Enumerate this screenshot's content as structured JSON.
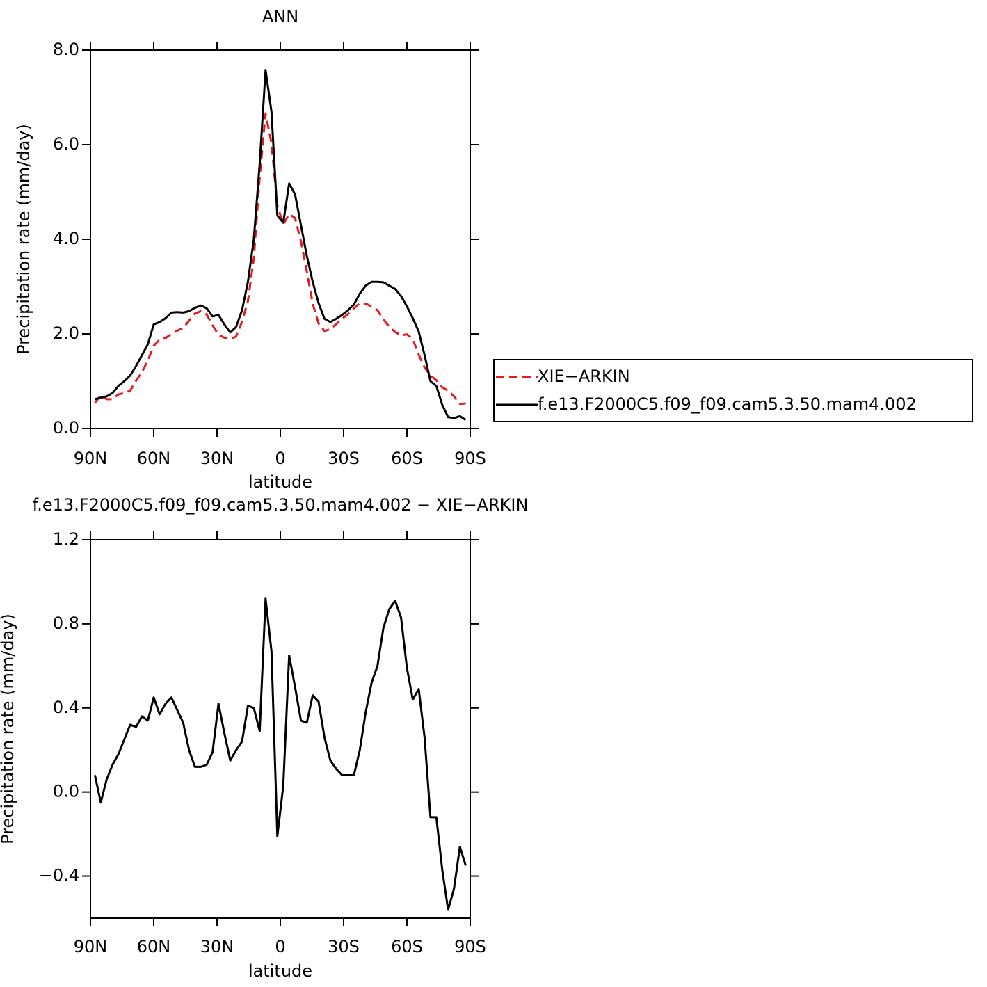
{
  "chart_data": [
    {
      "type": "line",
      "title": "ANN",
      "xlabel": "latitude",
      "ylabel": "Precipitation rate (mm/day)",
      "x": [
        87.86,
        85.1,
        82.31,
        79.53,
        76.74,
        73.95,
        71.16,
        68.37,
        65.58,
        62.79,
        60.0,
        57.21,
        54.42,
        51.63,
        48.84,
        46.05,
        43.26,
        40.47,
        37.67,
        34.88,
        32.09,
        29.3,
        26.51,
        23.72,
        20.93,
        18.14,
        15.35,
        12.56,
        9.77,
        6.98,
        4.19,
        1.4,
        -1.4,
        -4.19,
        -6.98,
        -9.77,
        -12.56,
        -15.35,
        -18.14,
        -20.93,
        -23.72,
        -26.51,
        -29.3,
        -32.09,
        -34.88,
        -37.67,
        -40.47,
        -43.26,
        -46.05,
        -48.84,
        -51.63,
        -54.42,
        -57.21,
        -60.0,
        -62.79,
        -65.58,
        -68.37,
        -71.16,
        -73.95,
        -76.74,
        -79.53,
        -82.31,
        -85.1,
        -87.86
      ],
      "xlim": [
        90,
        -90
      ],
      "xticks": [
        {
          "value": 90,
          "label": "90N"
        },
        {
          "value": 60,
          "label": "60N"
        },
        {
          "value": 30,
          "label": "30N"
        },
        0,
        {
          "value": -30,
          "label": "30S"
        },
        {
          "value": -60,
          "label": "60S"
        },
        {
          "value": -90,
          "label": "90S"
        }
      ],
      "ylim": [
        0,
        8
      ],
      "yticks": [
        {
          "value": 0,
          "label": "0.0"
        },
        {
          "value": 2,
          "label": "2.0"
        },
        {
          "value": 4,
          "label": "4.0"
        },
        {
          "value": 6,
          "label": "6.0"
        },
        {
          "value": 8,
          "label": "8.0"
        }
      ],
      "legend": "right",
      "series": [
        {
          "name": "XIE−ARKIN",
          "color": "#e41a1c",
          "linestyle": "dashed",
          "values": [
            0.54,
            0.7,
            0.62,
            0.62,
            0.72,
            0.75,
            0.8,
            1.01,
            1.19,
            1.44,
            1.75,
            1.88,
            1.91,
            2.0,
            2.07,
            2.12,
            2.28,
            2.43,
            2.48,
            2.41,
            2.18,
            1.98,
            1.92,
            1.88,
            1.95,
            2.26,
            2.69,
            3.6,
            5.31,
            6.66,
            6.03,
            4.71,
            4.32,
            4.53,
            4.45,
            3.96,
            3.32,
            2.64,
            2.22,
            2.06,
            2.1,
            2.21,
            2.32,
            2.42,
            2.54,
            2.65,
            2.64,
            2.58,
            2.5,
            2.31,
            2.15,
            2.04,
            1.97,
            1.99,
            1.89,
            1.56,
            1.29,
            1.12,
            1.02,
            0.87,
            0.8,
            0.68,
            0.52,
            0.53
          ]
        },
        {
          "name": "f.e13.F2000C5.f09_f09.cam5.3.50.mam4.002",
          "color": "#000000",
          "linestyle": "solid",
          "values": [
            0.62,
            0.65,
            0.68,
            0.75,
            0.9,
            1.0,
            1.12,
            1.32,
            1.55,
            1.78,
            2.2,
            2.25,
            2.33,
            2.45,
            2.46,
            2.45,
            2.48,
            2.55,
            2.6,
            2.54,
            2.37,
            2.4,
            2.2,
            2.03,
            2.15,
            2.5,
            3.1,
            4.0,
            5.6,
            7.58,
            6.7,
            4.5,
            4.35,
            5.18,
            4.95,
            4.3,
            3.65,
            3.1,
            2.65,
            2.32,
            2.25,
            2.32,
            2.4,
            2.5,
            2.62,
            2.85,
            3.02,
            3.1,
            3.1,
            3.09,
            3.02,
            2.95,
            2.8,
            2.58,
            2.33,
            2.05,
            1.55,
            1.0,
            0.9,
            0.5,
            0.24,
            0.22,
            0.26,
            0.18
          ]
        }
      ]
    },
    {
      "type": "line",
      "title": "f.e13.F2000C5.f09_f09.cam5.3.50.mam4.002 − XIE−ARKIN",
      "xlabel": "latitude",
      "ylabel": "Precipitation rate (mm/day)",
      "x": [
        87.86,
        85.1,
        82.31,
        79.53,
        76.74,
        73.95,
        71.16,
        68.37,
        65.58,
        62.79,
        60.0,
        57.21,
        54.42,
        51.63,
        48.84,
        46.05,
        43.26,
        40.47,
        37.67,
        34.88,
        32.09,
        29.3,
        26.51,
        23.72,
        20.93,
        18.14,
        15.35,
        12.56,
        9.77,
        6.98,
        4.19,
        1.4,
        -1.4,
        -4.19,
        -6.98,
        -9.77,
        -12.56,
        -15.35,
        -18.14,
        -20.93,
        -23.72,
        -26.51,
        -29.3,
        -32.09,
        -34.88,
        -37.67,
        -40.47,
        -43.26,
        -46.05,
        -48.84,
        -51.63,
        -54.42,
        -57.21,
        -60.0,
        -62.79,
        -65.58,
        -68.37,
        -71.16,
        -73.95,
        -76.74,
        -79.53,
        -82.31,
        -85.1,
        -87.86
      ],
      "xlim": [
        90,
        -90
      ],
      "xticks": [
        {
          "value": 90,
          "label": "90N"
        },
        {
          "value": 60,
          "label": "60N"
        },
        {
          "value": 30,
          "label": "30N"
        },
        0,
        {
          "value": -30,
          "label": "30S"
        },
        {
          "value": -60,
          "label": "60S"
        },
        {
          "value": -90,
          "label": "90S"
        }
      ],
      "ylim": [
        -0.6,
        1.2
      ],
      "yticks": [
        {
          "value": -0.4,
          "label": "−0.4"
        },
        {
          "value": 0,
          "label": "0.0"
        },
        0.4,
        0.8,
        1.2
      ],
      "color": "#000000",
      "linestyle": "solid",
      "values": [
        0.08,
        -0.05,
        0.06,
        0.13,
        0.18,
        0.25,
        0.32,
        0.31,
        0.36,
        0.34,
        0.45,
        0.37,
        0.42,
        0.45,
        0.39,
        0.33,
        0.2,
        0.12,
        0.12,
        0.13,
        0.19,
        0.42,
        0.28,
        0.15,
        0.2,
        0.24,
        0.41,
        0.4,
        0.29,
        0.92,
        0.67,
        -0.21,
        0.03,
        0.65,
        0.5,
        0.34,
        0.33,
        0.46,
        0.43,
        0.26,
        0.15,
        0.11,
        0.08,
        0.08,
        0.08,
        0.2,
        0.38,
        0.52,
        0.6,
        0.78,
        0.87,
        0.91,
        0.83,
        0.59,
        0.44,
        0.49,
        0.26,
        -0.12,
        -0.12,
        -0.37,
        -0.56,
        -0.46,
        -0.26,
        -0.35
      ]
    }
  ]
}
